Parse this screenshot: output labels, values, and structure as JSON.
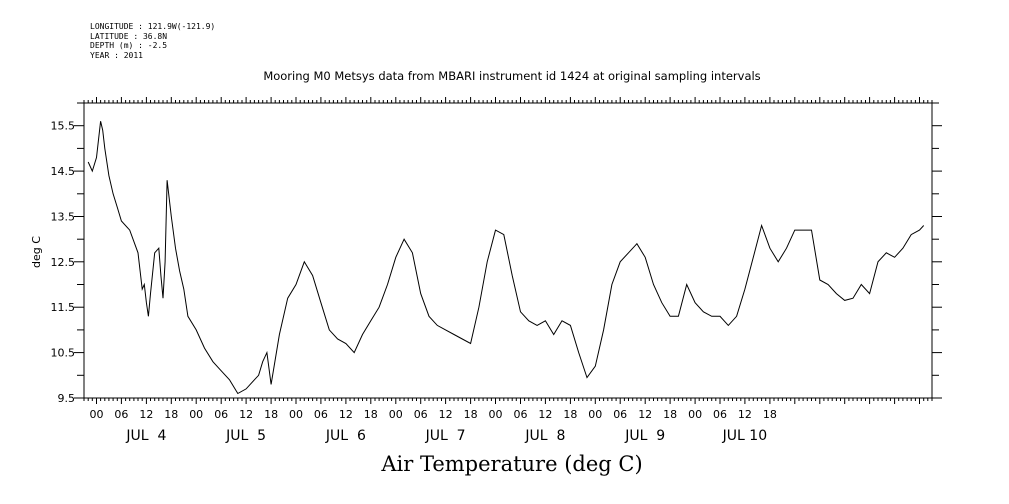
{
  "meta": {
    "longitude": "LONGITUDE : 121.9W(-121.9)",
    "latitude": "LATITUDE : 36.8N",
    "depth": "DEPTH (m) : -2.5",
    "year": "YEAR : 2011"
  },
  "chart_data": {
    "type": "line",
    "title": "Mooring M0 Metsys data from MBARI instrument id 1424 at original sampling intervals",
    "xlabel": "Air Temperature (deg C)",
    "ylabel": "deg C",
    "ylim": [
      9.5,
      16.0
    ],
    "xlim_hours": [
      -3,
      201
    ],
    "yticks": [
      "15.5",
      "14.5",
      "13.5",
      "12.5",
      "11.5",
      "10.5",
      "9.5"
    ],
    "hour_tick_labels": [
      "00",
      "06",
      "12",
      "18",
      "00",
      "06",
      "12",
      "18",
      "00",
      "06",
      "12",
      "18",
      "00",
      "06",
      "12",
      "18",
      "00",
      "06",
      "12",
      "18",
      "00",
      "06",
      "12",
      "18",
      "00",
      "06",
      "12",
      "18"
    ],
    "day_labels": [
      "JUL  4",
      "JUL  5",
      "JUL  6",
      "JUL  7",
      "JUL  8",
      "JUL  9",
      "JUL 10"
    ],
    "grid": false,
    "legend": "none",
    "line_color": "#000000",
    "series": [
      {
        "x": [
          -2,
          -1,
          0,
          1,
          1.5,
          2,
          3,
          4,
          5,
          6,
          8,
          10,
          10.5,
          11,
          11.5,
          12,
          12.5,
          13,
          14,
          15,
          15.5,
          16,
          16.5,
          17,
          18,
          19,
          20,
          21,
          22,
          24,
          26,
          28,
          30,
          32,
          34,
          36,
          38,
          39,
          40,
          41,
          42,
          44,
          46,
          48,
          50,
          52,
          54,
          56,
          58,
          60,
          62,
          64,
          66,
          68,
          70,
          72,
          74,
          76,
          78,
          80,
          82,
          84,
          86,
          88,
          90,
          92,
          94,
          96,
          98,
          100,
          102,
          104,
          106,
          108,
          110,
          112,
          114,
          116,
          118,
          120,
          122,
          124,
          126,
          128,
          130,
          132,
          134,
          136,
          138,
          140,
          142,
          144,
          146,
          148,
          150,
          152,
          154,
          156,
          158,
          160,
          162,
          164,
          166,
          168,
          170,
          172,
          174,
          176,
          178,
          180,
          182,
          184,
          186,
          188,
          190,
          192,
          194,
          196,
          198,
          199
        ],
        "y": [
          14.7,
          14.5,
          14.8,
          15.6,
          15.4,
          15.0,
          14.4,
          14.0,
          13.7,
          13.4,
          13.2,
          12.7,
          12.3,
          11.9,
          12.0,
          11.6,
          11.3,
          11.8,
          12.7,
          12.8,
          12.2,
          11.7,
          12.5,
          14.3,
          13.5,
          12.8,
          12.3,
          11.9,
          11.3,
          11.0,
          10.6,
          10.3,
          10.1,
          9.9,
          9.6,
          9.7,
          9.9,
          10.0,
          10.3,
          10.5,
          9.8,
          10.9,
          11.7,
          12.0,
          12.5,
          12.2,
          11.6,
          11.0,
          10.8,
          10.7,
          10.5,
          10.9,
          11.2,
          11.5,
          12.0,
          12.6,
          13.0,
          12.7,
          11.8,
          11.3,
          11.1,
          11.0,
          10.9,
          10.8,
          10.7,
          11.5,
          12.5,
          13.2,
          13.1,
          12.2,
          11.4,
          11.2,
          11.1,
          11.2,
          10.9,
          11.2,
          11.1,
          10.5,
          9.95,
          10.2,
          11.0,
          12.0,
          12.5,
          12.7,
          12.9,
          12.6,
          12.0,
          11.6,
          11.3,
          11.3,
          12.0,
          11.6,
          11.4,
          11.3,
          11.3,
          11.1,
          11.3,
          11.9,
          12.6,
          13.3,
          12.8,
          12.5,
          12.8,
          13.2,
          13.2,
          13.2,
          12.1,
          12.0,
          11.8,
          11.65,
          11.7,
          12.0,
          11.8,
          12.5,
          12.7,
          12.6,
          12.8,
          13.1,
          13.2,
          13.3
        ]
      }
    ]
  }
}
